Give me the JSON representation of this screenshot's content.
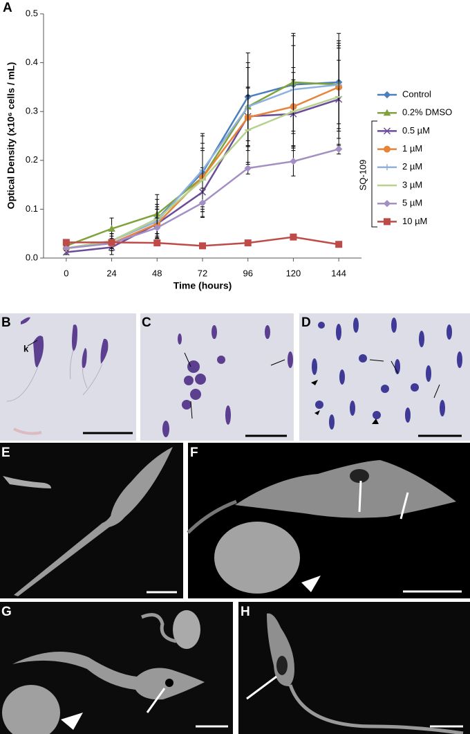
{
  "chart_data": {
    "type": "line",
    "panel_label": "A",
    "x_label": "Time (hours)",
    "y_label": "Optical Density (x10⁶ cells / mL)",
    "x": [
      0,
      24,
      48,
      72,
      96,
      120,
      144
    ],
    "xlim": [
      -12,
      156
    ],
    "xticks": [
      0,
      24,
      48,
      72,
      96,
      120,
      144
    ],
    "ylim": [
      0,
      0.5
    ],
    "yticks": [
      {
        "value": 0,
        "label": "0.0"
      },
      0.1,
      0.2,
      0.3,
      0.4,
      0.5
    ],
    "legend_group": "SQ-109",
    "series": [
      {
        "name": "Control",
        "color": "#4a7ebb",
        "marker": "diamond",
        "values": [
          0.02,
          0.035,
          0.08,
          0.175,
          0.33,
          0.355,
          0.36
        ],
        "errors": [
          0.005,
          0.02,
          0.04,
          0.08,
          0.09,
          0.1,
          0.1
        ]
      },
      {
        "name": "0.2% DMSO",
        "color": "#7fa33c",
        "marker": "triangle",
        "values": [
          0.025,
          0.06,
          0.09,
          0.165,
          0.31,
          0.36,
          0.355
        ],
        "errors": [
          0.005,
          0.022,
          0.04,
          0.07,
          0.09,
          0.1,
          0.09
        ]
      },
      {
        "name": "0.5 µM",
        "color": "#6b4c9a",
        "marker": "x",
        "values": [
          0.012,
          0.022,
          0.07,
          0.135,
          0.29,
          0.295,
          0.325
        ],
        "errors": [
          0.005,
          0.015,
          0.03,
          0.05,
          0.06,
          0.07,
          0.08
        ]
      },
      {
        "name": "1 µM",
        "color": "#e8843a",
        "marker": "circle",
        "values": [
          0.02,
          0.03,
          0.07,
          0.165,
          0.288,
          0.31,
          0.35
        ],
        "errors": [
          0.005,
          0.015,
          0.03,
          0.06,
          0.06,
          0.08,
          0.09
        ]
      },
      {
        "name": "2 µM",
        "color": "#8fb1dd",
        "marker": "plus",
        "values": [
          0.02,
          0.035,
          0.075,
          0.18,
          0.31,
          0.345,
          0.355
        ],
        "errors": [
          0.005,
          0.015,
          0.03,
          0.07,
          0.08,
          0.09,
          0.08
        ]
      },
      {
        "name": "3 µM",
        "color": "#b5d18c",
        "marker": "dash",
        "values": [
          0.02,
          0.035,
          0.08,
          0.16,
          0.262,
          0.3,
          0.33
        ],
        "errors": [
          0.005,
          0.015,
          0.03,
          0.06,
          0.07,
          0.08,
          0.1
        ]
      },
      {
        "name": "5 µM",
        "color": "#a38fc4",
        "marker": "diamond",
        "values": [
          0.02,
          0.03,
          0.062,
          0.113,
          0.184,
          0.198,
          0.223
        ],
        "errors": [
          0.005,
          0.01,
          0.02,
          0.03,
          0.012,
          0.03,
          0.01
        ]
      },
      {
        "name": "10 µM",
        "color": "#be4b48",
        "marker": "square",
        "values": [
          0.032,
          0.032,
          0.031,
          0.025,
          0.031,
          0.043,
          0.028
        ],
        "errors": [
          0.003,
          0.003,
          0.003,
          0.003,
          0.003,
          0.003,
          0.003
        ]
      }
    ]
  },
  "micrographs": [
    {
      "label": "B",
      "annotation": "k"
    },
    {
      "label": "C"
    },
    {
      "label": "D"
    },
    {
      "label": "E"
    },
    {
      "label": "F"
    },
    {
      "label": "G"
    },
    {
      "label": "H"
    }
  ]
}
